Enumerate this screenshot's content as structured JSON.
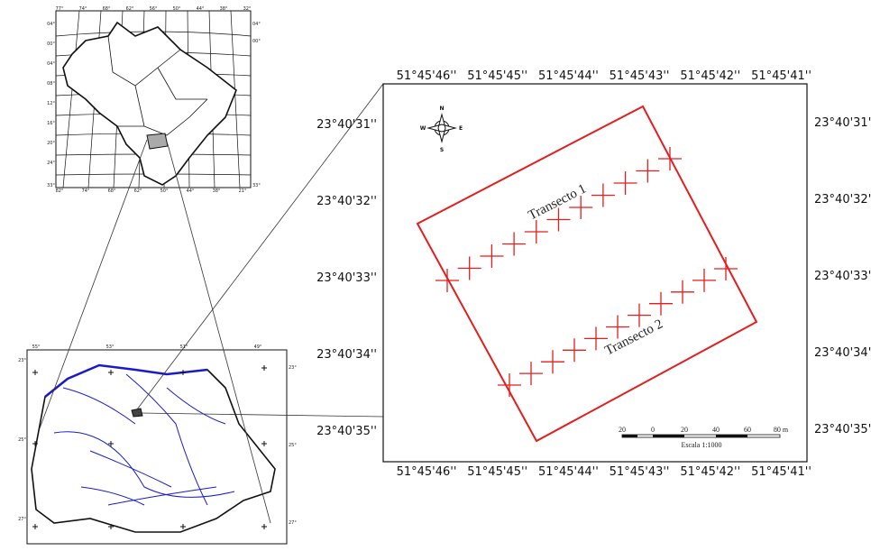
{
  "main_map": {
    "top_longitudes": [
      "51°45'46''",
      "51°45'45''",
      "51°45'44''",
      "51°45'43''",
      "51°45'42''",
      "51°45'41''"
    ],
    "bottom_longitudes": [
      "51°45'46''",
      "51°45'45''",
      "51°45'44''",
      "51°45'43''",
      "51°45'42''",
      "51°45'41''"
    ],
    "left_latitudes": [
      "23°40'31''",
      "23°40'32''",
      "23°40'33''",
      "23°40'34''",
      "23°40'35''"
    ],
    "right_latitudes": [
      "23°40'31''",
      "23°40'32''",
      "23°40'33''",
      "23°40'34''",
      "23°40'35''"
    ],
    "transect_labels": [
      "Transecto 1",
      "Transecto 2"
    ],
    "compass": {
      "north": "N",
      "south": "S",
      "east": "E",
      "west": "W"
    },
    "scale_ticks": [
      "20",
      "0",
      "20",
      "40",
      "60",
      "80 m"
    ],
    "scale_label": "Escala 1:1000"
  },
  "brazil_map": {
    "top_labels": [
      "77°",
      "74°",
      "68°",
      "62°",
      "56°",
      "50°",
      "44°",
      "38°",
      "32°"
    ],
    "left_labels": [
      "04°",
      "00°",
      "04°",
      "08°",
      "12°",
      "16°",
      "20°",
      "24°",
      "33°"
    ],
    "right_labels": [
      "04°",
      "00°",
      "33°"
    ],
    "bottom_labels": [
      "82°",
      "74°",
      "68°",
      "62°",
      "50°",
      "44°",
      "38°",
      "21°"
    ]
  },
  "parana_map": {
    "top_labels": [
      "55°",
      "53°",
      "51°",
      "49°"
    ],
    "left_labels": [
      "23°",
      "25°",
      "27°"
    ],
    "right_labels": [
      "23°",
      "25°",
      "27°"
    ]
  }
}
